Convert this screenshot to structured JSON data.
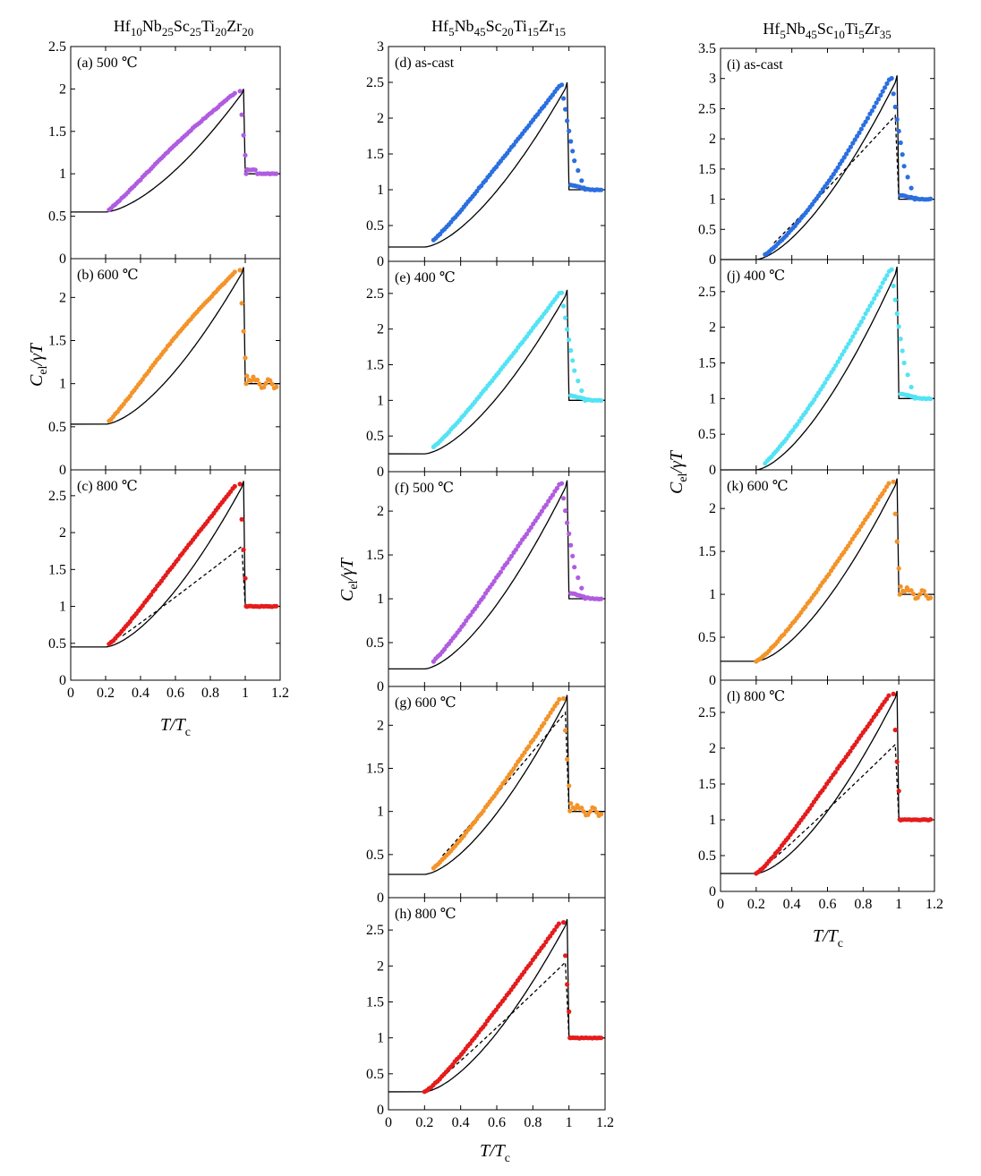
{
  "figure": {
    "x_tick_labels": [
      "0",
      "0.2",
      "0.4",
      "0.6",
      "0.8",
      "1",
      "1.2"
    ],
    "x_axis_label": {
      "main": "T/T",
      "sub": "c"
    },
    "y_axis_label": {
      "main": "C",
      "sub": "el",
      "rest": "/γT"
    }
  },
  "colors": {
    "purple": "#b05ce0",
    "orange": "#f39329",
    "red": "#e41c1c",
    "blue": "#2b6fe0",
    "cyan": "#53e3f5",
    "curve": "#000000"
  },
  "chart_data": [
    {
      "column": 0,
      "title": {
        "parts": [
          [
            "Hf",
            ""
          ],
          [
            "10",
            "sub"
          ],
          [
            "Nb",
            ""
          ],
          [
            "25",
            "sub"
          ],
          [
            "Sc",
            ""
          ],
          [
            "25",
            "sub"
          ],
          [
            "Ti",
            ""
          ],
          [
            "20",
            "sub"
          ],
          [
            "Zr",
            ""
          ],
          [
            "20",
            "sub"
          ]
        ]
      },
      "panels": [
        {
          "label": "(a) 500 ℃",
          "type": "line",
          "ylim": [
            0,
            2.5
          ],
          "yticks": [
            "0",
            "0.5",
            "1",
            "1.5",
            "2",
            "2.5"
          ],
          "color": "purple",
          "y0": 0.55,
          "jump": 2.0,
          "alpha": false,
          "bump": 0.15,
          "post": "gentle",
          "x_start": 0.22
        },
        {
          "label": "(b) 600 ℃",
          "type": "line",
          "ylim": [
            0,
            2.45
          ],
          "yticks": [
            "0",
            "0.5",
            "1",
            "1.5",
            "2"
          ],
          "color": "orange",
          "y0": 0.53,
          "jump": 2.35,
          "alpha": false,
          "bump": 0.2,
          "post": "wavy",
          "x_start": 0.22
        },
        {
          "label": "(c) 800 ℃",
          "type": "line",
          "ylim": [
            0,
            2.85
          ],
          "yticks": [
            "0",
            "0.5",
            "1",
            "1.5",
            "2",
            "2.5"
          ],
          "color": "red",
          "y0": 0.45,
          "jump": 2.7,
          "alpha": 1.85,
          "bump": 0.14,
          "post": "flat",
          "x_start": 0.22,
          "show_x": true
        }
      ]
    },
    {
      "column": 1,
      "title": {
        "parts": [
          [
            "Hf",
            ""
          ],
          [
            "5",
            "sub"
          ],
          [
            "Nb",
            ""
          ],
          [
            "45",
            "sub"
          ],
          [
            "Sc",
            ""
          ],
          [
            "20",
            "sub"
          ],
          [
            "Ti",
            ""
          ],
          [
            "15",
            "sub"
          ],
          [
            "Zr",
            ""
          ],
          [
            "15",
            "sub"
          ]
        ]
      },
      "panels": [
        {
          "label": "(d) as-cast",
          "type": "line",
          "ylim": [
            0,
            3.0
          ],
          "yticks": [
            "0",
            "0.5",
            "1",
            "1.5",
            "2",
            "2.5",
            "3"
          ],
          "color": "blue",
          "y0": 0.2,
          "jump": 2.5,
          "alpha": false,
          "bump": 0.1,
          "post": "steep",
          "x_start": 0.25
        },
        {
          "label": "(e) 400 ℃",
          "type": "line",
          "ylim": [
            0,
            2.95
          ],
          "yticks": [
            "0",
            "0.5",
            "1",
            "1.5",
            "2",
            "2.5"
          ],
          "color": "cyan",
          "y0": 0.25,
          "jump": 2.55,
          "alpha": false,
          "bump": 0.08,
          "post": "steep",
          "x_start": 0.25
        },
        {
          "label": "(f) 500 ℃",
          "type": "line",
          "ylim": [
            0,
            2.45
          ],
          "yticks": [
            "0",
            "0.5",
            "1",
            "1.5",
            "2"
          ],
          "color": "purple",
          "y0": 0.2,
          "jump": 2.35,
          "alpha": false,
          "bump": 0.08,
          "post": "steep",
          "x_start": 0.25
        },
        {
          "label": "(g) 600 ℃",
          "type": "line",
          "ylim": [
            0,
            2.45
          ],
          "yticks": [
            "0",
            "0.5",
            "1",
            "1.5",
            "2"
          ],
          "color": "orange",
          "y0": 0.27,
          "jump": 2.35,
          "alpha": 2.2,
          "bump": 0.02,
          "post": "wavy",
          "x_start": 0.25
        },
        {
          "label": "(h) 800 ℃",
          "type": "line",
          "ylim": [
            0,
            2.95
          ],
          "yticks": [
            "0",
            "0.5",
            "1",
            "1.5",
            "2",
            "2.5"
          ],
          "color": "red",
          "y0": 0.25,
          "jump": 2.65,
          "alpha": 2.1,
          "bump": 0.08,
          "post": "flat",
          "x_start": 0.2,
          "show_x": true
        }
      ]
    },
    {
      "column": 2,
      "title": {
        "parts": [
          [
            "Hf",
            ""
          ],
          [
            "5",
            "sub"
          ],
          [
            "Nb",
            ""
          ],
          [
            "45",
            "sub"
          ],
          [
            "Sc",
            ""
          ],
          [
            "10",
            "sub"
          ],
          [
            "Ti",
            ""
          ],
          [
            "5",
            "sub"
          ],
          [
            "Zr",
            ""
          ],
          [
            "35",
            "sub"
          ]
        ]
      },
      "panels": [
        {
          "label": "(i) as-cast",
          "type": "line",
          "ylim": [
            0,
            3.5
          ],
          "yticks": [
            "0",
            "0.5",
            "1",
            "1.5",
            "2",
            "2.5",
            "3",
            "3.5"
          ],
          "color": "blue",
          "y0": 0.0,
          "jump": 3.05,
          "alpha": 2.45,
          "bump": -0.1,
          "post": "steep",
          "x_start": 0.25
        },
        {
          "label": "(j) 400 ℃",
          "type": "line",
          "ylim": [
            0,
            2.95
          ],
          "yticks": [
            "0",
            "0.5",
            "1",
            "1.5",
            "2",
            "2.5"
          ],
          "color": "cyan",
          "y0": 0.0,
          "jump": 2.85,
          "alpha": false,
          "bump": 0.0,
          "post": "steep",
          "x_start": 0.25
        },
        {
          "label": "(k) 600 ℃",
          "type": "line",
          "ylim": [
            0,
            2.45
          ],
          "yticks": [
            "0",
            "0.5",
            "1",
            "1.5",
            "2"
          ],
          "color": "orange",
          "y0": 0.22,
          "jump": 2.35,
          "alpha": false,
          "bump": 0.04,
          "post": "wavy",
          "x_start": 0.2
        },
        {
          "label": "(l) 800 ℃",
          "type": "line",
          "ylim": [
            0,
            2.95
          ],
          "yticks": [
            "0",
            "0.5",
            "1",
            "1.5",
            "2",
            "2.5"
          ],
          "color": "red",
          "y0": 0.25,
          "jump": 2.8,
          "alpha": 2.1,
          "bump": 0.12,
          "post": "flat",
          "x_start": 0.2,
          "show_x": true
        }
      ]
    }
  ]
}
